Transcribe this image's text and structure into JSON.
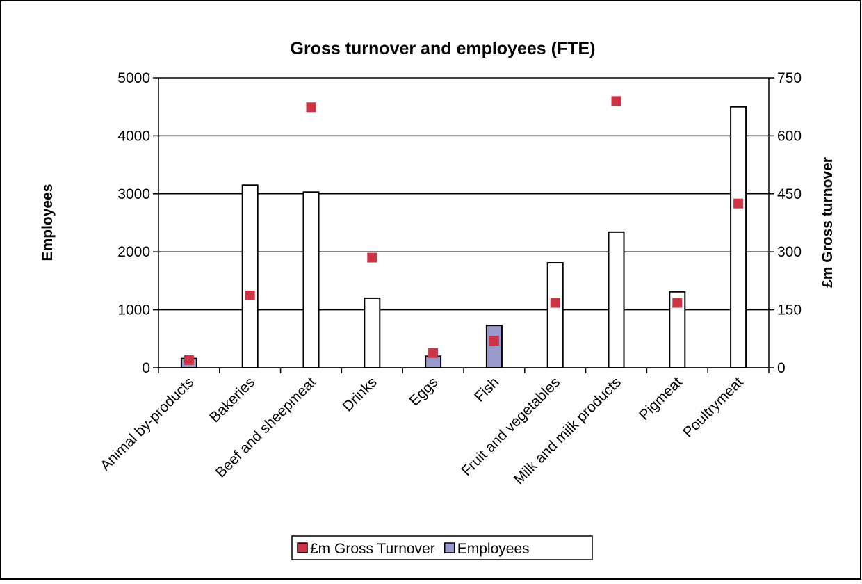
{
  "chart_data": {
    "type": "bar-scatter",
    "title": "Gross turnover and employees (FTE)",
    "y_label": "Employees",
    "y2_label": "£m Gross turnover",
    "categories": [
      "Animal by-products",
      "Bakeries",
      "Beef and sheepmeat",
      "Drinks",
      "Eggs",
      "Fish",
      "Fruit and vegetables",
      "Milk and milk products",
      "Pigmeat",
      "Poultrymeat"
    ],
    "series": [
      {
        "name": "£m Gross Turnover",
        "color": "#cc3344",
        "axis": "y2",
        "values": [
          20,
          187,
          674,
          285,
          38,
          70,
          168,
          690,
          168,
          425
        ]
      },
      {
        "name": "Employees",
        "color": "#9999cc",
        "axis": "y",
        "values": [
          160,
          3150,
          3030,
          1200,
          200,
          730,
          1810,
          2340,
          1310,
          4500
        ],
        "colors": [
          "#9999cc",
          "#ffffff",
          "#ffffff",
          "#ffffff",
          "#9999cc",
          "#9999cc",
          "#ffffff",
          "#ffffff",
          "#ffffff",
          "#ffffff"
        ]
      }
    ],
    "ylim": [
      0,
      5000
    ],
    "yticks": [
      0,
      1000,
      2000,
      3000,
      4000,
      5000
    ],
    "y2lim": [
      0,
      750
    ],
    "y2ticks": [
      0,
      150,
      300,
      450,
      600,
      750
    ],
    "grid": true,
    "legend": "bottom"
  }
}
